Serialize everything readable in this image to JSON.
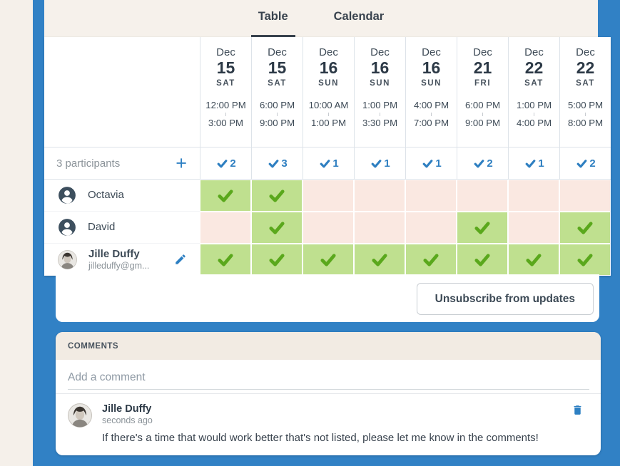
{
  "tabs": {
    "table": "Table",
    "calendar": "Calendar"
  },
  "slots": [
    {
      "month": "Dec",
      "day": "15",
      "weekday": "SAT",
      "start_time": "12:00 PM",
      "end_time": "3:00 PM",
      "yes_count": "2"
    },
    {
      "month": "Dec",
      "day": "15",
      "weekday": "SAT",
      "start_time": "6:00 PM",
      "end_time": "9:00 PM",
      "yes_count": "3"
    },
    {
      "month": "Dec",
      "day": "16",
      "weekday": "SUN",
      "start_time": "10:00 AM",
      "end_time": "1:00 PM",
      "yes_count": "1"
    },
    {
      "month": "Dec",
      "day": "16",
      "weekday": "SUN",
      "start_time": "1:00 PM",
      "end_time": "3:30 PM",
      "yes_count": "1"
    },
    {
      "month": "Dec",
      "day": "16",
      "weekday": "SUN",
      "start_time": "4:00 PM",
      "end_time": "7:00 PM",
      "yes_count": "1"
    },
    {
      "month": "Dec",
      "day": "21",
      "weekday": "FRI",
      "start_time": "6:00 PM",
      "end_time": "9:00 PM",
      "yes_count": "2"
    },
    {
      "month": "Dec",
      "day": "22",
      "weekday": "SAT",
      "start_time": "1:00 PM",
      "end_time": "4:00 PM",
      "yes_count": "1"
    },
    {
      "month": "Dec",
      "day": "22",
      "weekday": "SAT",
      "start_time": "5:00 PM",
      "end_time": "8:00 PM",
      "yes_count": "2"
    }
  ],
  "participants_header": {
    "count_label": "3 participants",
    "add_icon": "plus-icon"
  },
  "participants": [
    {
      "name": "Octavia",
      "avatar": "person-icon",
      "availability": [
        "yes",
        "yes",
        "no",
        "no",
        "no",
        "no",
        "no",
        "no"
      ]
    },
    {
      "name": "David",
      "avatar": "person-icon",
      "availability": [
        "no",
        "yes",
        "no",
        "no",
        "no",
        "yes",
        "no",
        "yes"
      ]
    },
    {
      "name": "Jille Duffy",
      "email": "jilleduffy@gm...",
      "avatar": "photo",
      "editable": true,
      "availability": [
        "yes",
        "yes",
        "yes",
        "yes",
        "yes",
        "yes",
        "yes",
        "yes"
      ]
    }
  ],
  "unsubscribe_button": "Unsubscribe from updates",
  "comments": {
    "header": "COMMENTS",
    "placeholder": "Add a comment",
    "entries": [
      {
        "author": "Jille Duffy",
        "timestamp": "seconds ago",
        "text": "If there's a time that would work better that's not listed, please let me know in the comments!"
      }
    ]
  },
  "icons": {
    "check_yes": "green-check-icon",
    "check_count": "blue-check-icon",
    "edit": "pencil-icon",
    "delete": "trash-icon",
    "participant": "person-circle-icon"
  },
  "colors": {
    "page_blue": "#3181c5",
    "left_strip": "#f5f0ea",
    "beige": "#f6f1eb",
    "comments_header_bg": "#f2ebe3",
    "green_cell": "#bfe08f",
    "green_check": "#5aa81c",
    "pink_cell": "#fae8e1",
    "accent_blue": "#2e80c3",
    "dark_text": "#3d4a56",
    "gray_text": "#8b9399"
  }
}
